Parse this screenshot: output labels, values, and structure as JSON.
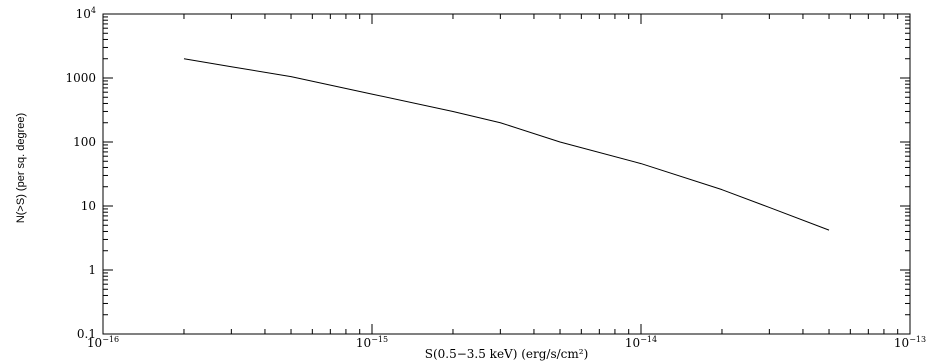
{
  "chart_data": {
    "type": "line",
    "title": "",
    "xlabel": "S(0.5−3.5 keV) (erg/s/cm²)",
    "ylabel": "N(>S) (per sq. degree)",
    "x_scale": "log",
    "y_scale": "log",
    "xlim": [
      1e-16,
      1e-13
    ],
    "ylim": [
      0.1,
      10000
    ],
    "grid": false,
    "x_ticks": [
      {
        "value": 1e-16,
        "base": "10",
        "exp": "−16"
      },
      {
        "value": 1e-15,
        "base": "10",
        "exp": "−15"
      },
      {
        "value": 1e-14,
        "base": "10",
        "exp": "−14"
      },
      {
        "value": 1e-13,
        "base": "10",
        "exp": "−13"
      }
    ],
    "y_ticks": [
      {
        "value": 0.1,
        "label": "0.1",
        "exp": ""
      },
      {
        "value": 1,
        "label": "1",
        "exp": ""
      },
      {
        "value": 10,
        "label": "10",
        "exp": ""
      },
      {
        "value": 100,
        "label": "100",
        "exp": ""
      },
      {
        "value": 1000,
        "label": "1000",
        "exp": ""
      },
      {
        "value": 10000,
        "label": "10",
        "exp": "4"
      }
    ],
    "series": [
      {
        "x": [
          2e-16,
          3e-16,
          5e-16,
          1e-15,
          2e-15,
          3e-15,
          5e-15,
          1e-14,
          2e-14,
          3e-14,
          5e-14
        ],
        "y": [
          2000,
          1500,
          1050,
          560,
          300,
          200,
          100,
          46,
          18,
          9.5,
          4.2
        ]
      }
    ]
  }
}
